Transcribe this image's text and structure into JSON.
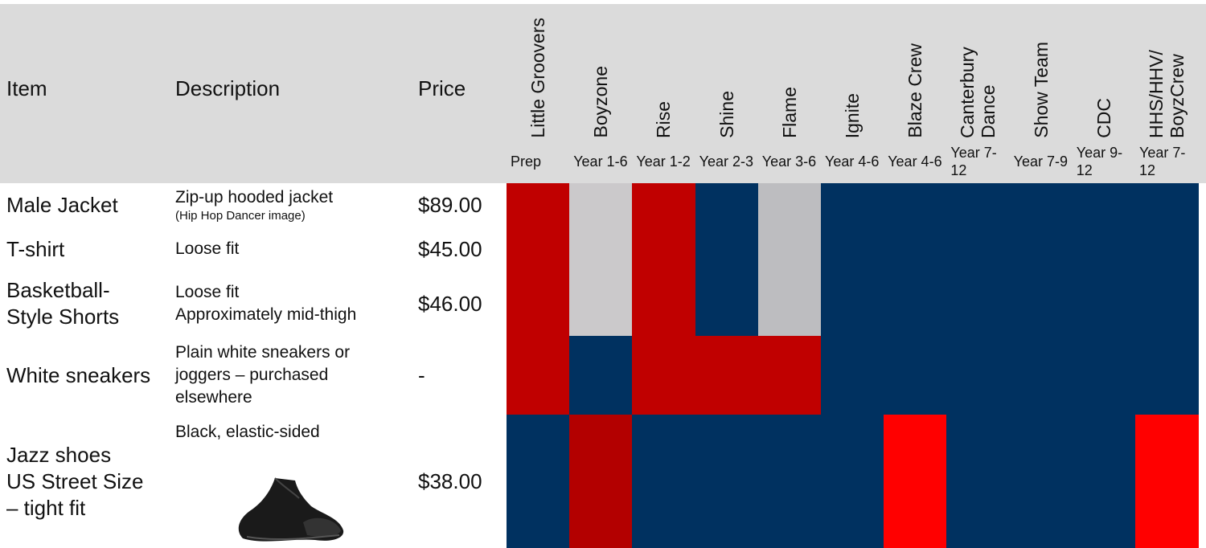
{
  "header": {
    "item": "Item",
    "description": "Description",
    "price": "Price",
    "groups": [
      {
        "name": "Little Groovers",
        "years": "Prep"
      },
      {
        "name": "Boyzone",
        "years": "Year 1-6"
      },
      {
        "name": "Rise",
        "years": "Year 1-2"
      },
      {
        "name": "Shine",
        "years": "Year 2-3"
      },
      {
        "name": "Flame",
        "years": "Year 3-6"
      },
      {
        "name": "Ignite",
        "years": "Year 4-6"
      },
      {
        "name": "Blaze Crew",
        "years": "Year 4-6"
      },
      {
        "name": "Canterbury Dance",
        "years": "Year 7-12"
      },
      {
        "name": "Show Team",
        "years": "Year 7-9"
      },
      {
        "name": "CDC",
        "years": "Year 9-12"
      },
      {
        "name": "HHS/HHV/ BoyzCrew",
        "years": "Year 7-12"
      }
    ]
  },
  "rows": [
    {
      "item": [
        "Male Jacket"
      ],
      "description": [
        "Zip-up hooded jacket"
      ],
      "note": "(Hip Hop Dancer image)",
      "price": "$89.00"
    },
    {
      "item": [
        "T-shirt"
      ],
      "description": [
        "Loose fit"
      ],
      "price": "$45.00"
    },
    {
      "item": [
        "Basketball-",
        "Style Shorts"
      ],
      "description": [
        "Loose fit",
        "Approximately mid-thigh"
      ],
      "price": "$46.00"
    },
    {
      "item": [
        "White sneakers"
      ],
      "description": [
        "Plain white sneakers or",
        "joggers – purchased",
        "elsewhere"
      ],
      "price": "-"
    },
    {
      "item": [
        "Jazz shoes",
        "US Street Size",
        "– tight fit"
      ],
      "description": [
        "Black, elastic-sided"
      ],
      "price": "$38.00"
    }
  ]
}
